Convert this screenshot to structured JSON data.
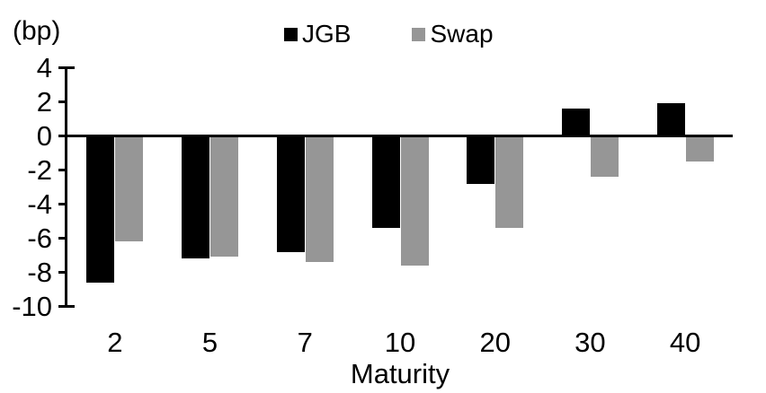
{
  "chart_data": {
    "type": "bar",
    "title": "",
    "unit_label": "(bp)",
    "xlabel": "Maturity",
    "ylabel": "",
    "categories": [
      "2",
      "5",
      "7",
      "10",
      "20",
      "30",
      "40"
    ],
    "series": [
      {
        "name": "JGB",
        "color": "#000000",
        "values": [
          -8.6,
          -7.2,
          -6.8,
          -5.4,
          -2.8,
          1.6,
          1.9
        ]
      },
      {
        "name": "Swap",
        "color": "#969696",
        "values": [
          -6.2,
          -7.1,
          -7.4,
          -7.6,
          -5.4,
          -2.4,
          -1.5
        ]
      }
    ],
    "y_ticks": [
      4,
      2,
      0,
      -2,
      -4,
      -6,
      -8,
      -10
    ],
    "ylim": [
      -10,
      4
    ],
    "grid": false,
    "legend_position": "top-center",
    "axis_color": "#000000"
  }
}
